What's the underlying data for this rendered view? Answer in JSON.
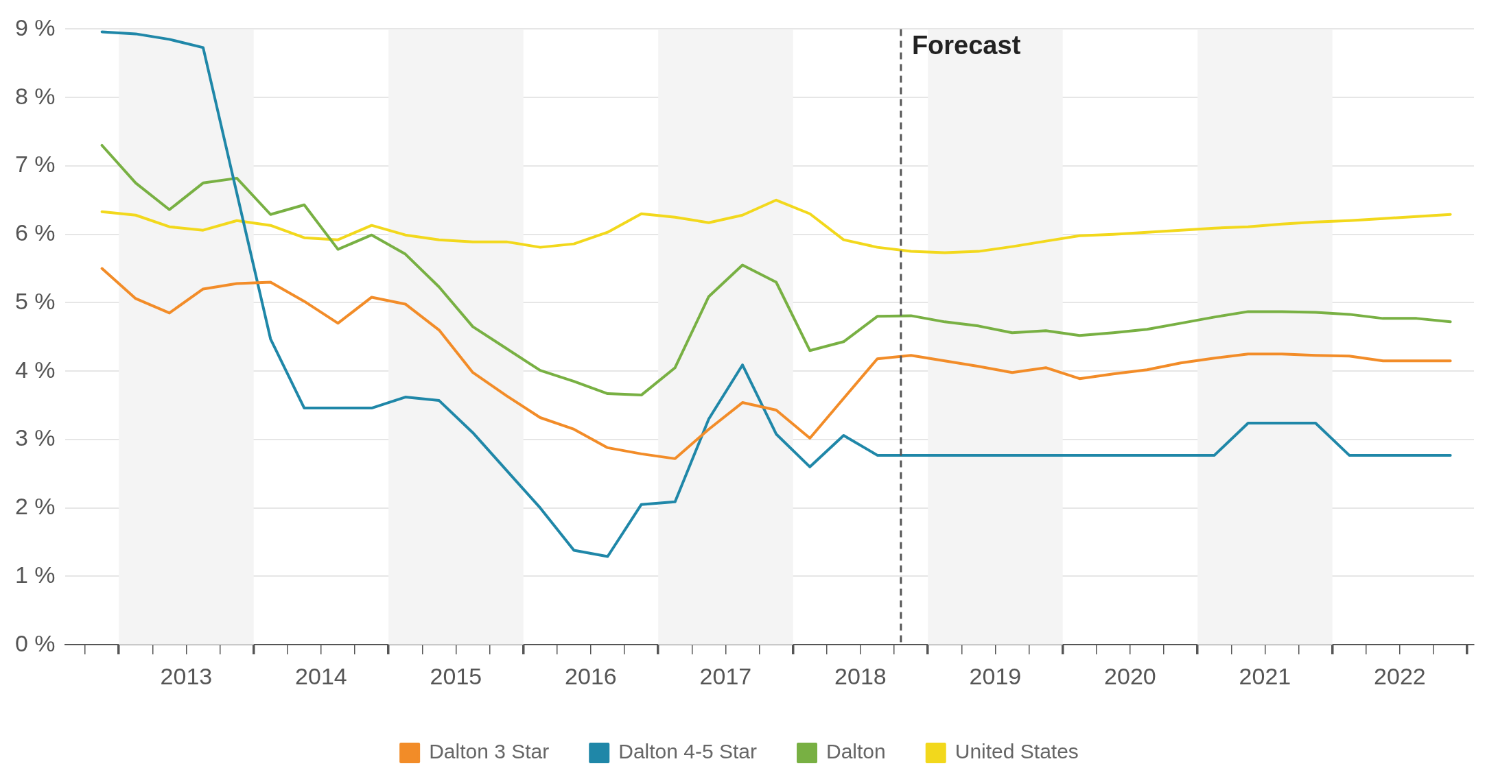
{
  "chart_data": {
    "type": "line",
    "x": [
      2012.875,
      2013.125,
      2013.375,
      2013.625,
      2013.875,
      2014.125,
      2014.375,
      2014.625,
      2014.875,
      2015.125,
      2015.375,
      2015.625,
      2015.875,
      2016.125,
      2016.375,
      2016.625,
      2016.875,
      2017.125,
      2017.375,
      2017.625,
      2017.875,
      2018.125,
      2018.375,
      2018.625,
      2018.875,
      2019.125,
      2019.375,
      2019.625,
      2019.875,
      2020.125,
      2020.375,
      2020.625,
      2020.875,
      2021.125,
      2021.375,
      2021.625,
      2021.875,
      2022.125,
      2022.375,
      2022.625,
      2022.875
    ],
    "series": [
      {
        "name": "Dalton 3 Star",
        "color": "#f28c28",
        "values": [
          5.5,
          5.06,
          4.85,
          5.2,
          5.28,
          5.3,
          5.02,
          4.7,
          5.08,
          4.98,
          4.6,
          3.98,
          3.64,
          3.32,
          3.15,
          2.88,
          2.79,
          2.72,
          3.15,
          3.54,
          3.43,
          3.02,
          3.6,
          4.18,
          4.23,
          4.15,
          4.07,
          3.98,
          4.05,
          3.89,
          3.96,
          4.02,
          4.12,
          4.19,
          4.25,
          4.25,
          4.23,
          4.22,
          4.15,
          4.15,
          4.15
        ]
      },
      {
        "name": "Dalton 4-5 Star",
        "color": "#1f87a8",
        "values": [
          8.96,
          8.93,
          8.85,
          8.73,
          6.6,
          4.47,
          3.46,
          3.46,
          3.46,
          3.62,
          3.57,
          3.1,
          2.55,
          2.0,
          1.38,
          1.29,
          2.05,
          2.09,
          3.3,
          4.09,
          3.08,
          2.6,
          3.06,
          2.77,
          2.77,
          2.77,
          2.77,
          2.77,
          2.77,
          2.77,
          2.77,
          2.77,
          2.77,
          2.77,
          3.24,
          3.24,
          3.24,
          2.77,
          2.77,
          2.77,
          2.77
        ]
      },
      {
        "name": "Dalton",
        "color": "#78b043",
        "values": [
          7.3,
          6.75,
          6.36,
          6.75,
          6.82,
          6.29,
          6.43,
          5.78,
          5.99,
          5.71,
          5.23,
          4.65,
          4.33,
          4.01,
          3.85,
          3.67,
          3.65,
          4.05,
          5.09,
          5.55,
          5.3,
          4.3,
          4.43,
          4.8,
          4.81,
          4.72,
          4.66,
          4.56,
          4.59,
          4.52,
          4.56,
          4.61,
          4.7,
          4.79,
          4.87,
          4.87,
          4.86,
          4.83,
          4.77,
          4.77,
          4.72
        ]
      },
      {
        "name": "United States",
        "color": "#f2d81c",
        "values": [
          6.33,
          6.28,
          6.11,
          6.06,
          6.2,
          6.13,
          5.95,
          5.92,
          6.13,
          5.99,
          5.92,
          5.89,
          5.89,
          5.81,
          5.86,
          6.03,
          6.3,
          6.25,
          6.17,
          6.28,
          6.5,
          6.3,
          5.92,
          5.81,
          5.75,
          5.73,
          5.75,
          5.82,
          5.9,
          5.98,
          6.0,
          6.03,
          6.06,
          6.09,
          6.11,
          6.15,
          6.18,
          6.2,
          6.23,
          6.26,
          6.29
        ]
      }
    ],
    "xlim": [
      2012.6,
      2023.05
    ],
    "xticks": [
      {
        "value": 2012.75,
        "label": null
      },
      {
        "value": 2013,
        "label": null
      },
      {
        "value": 2013.25,
        "label": null
      },
      {
        "value": 2013.5,
        "label": "2013"
      },
      {
        "value": 2013.75,
        "label": null
      },
      {
        "value": 2014,
        "label": null
      },
      {
        "value": 2014.25,
        "label": null
      },
      {
        "value": 2014.5,
        "label": "2014"
      },
      {
        "value": 2014.75,
        "label": null
      },
      {
        "value": 2015,
        "label": null
      },
      {
        "value": 2015.25,
        "label": null
      },
      {
        "value": 2015.5,
        "label": "2015"
      },
      {
        "value": 2015.75,
        "label": null
      },
      {
        "value": 2016,
        "label": null
      },
      {
        "value": 2016.25,
        "label": null
      },
      {
        "value": 2016.5,
        "label": "2016"
      },
      {
        "value": 2016.75,
        "label": null
      },
      {
        "value": 2017,
        "label": null
      },
      {
        "value": 2017.25,
        "label": null
      },
      {
        "value": 2017.5,
        "label": "2017"
      },
      {
        "value": 2017.75,
        "label": null
      },
      {
        "value": 2018,
        "label": null
      },
      {
        "value": 2018.25,
        "label": null
      },
      {
        "value": 2018.5,
        "label": "2018"
      },
      {
        "value": 2018.75,
        "label": null
      },
      {
        "value": 2019,
        "label": null
      },
      {
        "value": 2019.25,
        "label": null
      },
      {
        "value": 2019.5,
        "label": "2019"
      },
      {
        "value": 2019.75,
        "label": null
      },
      {
        "value": 2020,
        "label": null
      },
      {
        "value": 2020.25,
        "label": null
      },
      {
        "value": 2020.5,
        "label": "2020"
      },
      {
        "value": 2020.75,
        "label": null
      },
      {
        "value": 2021,
        "label": null
      },
      {
        "value": 2021.25,
        "label": null
      },
      {
        "value": 2021.5,
        "label": "2021"
      },
      {
        "value": 2021.75,
        "label": null
      },
      {
        "value": 2022,
        "label": null
      },
      {
        "value": 2022.25,
        "label": null
      },
      {
        "value": 2022.5,
        "label": "2022"
      },
      {
        "value": 2022.75,
        "label": null
      },
      {
        "value": 2023,
        "label": null
      }
    ],
    "ylim": [
      0,
      9
    ],
    "yticks": [
      {
        "value": 0,
        "label": "0 %"
      },
      {
        "value": 1,
        "label": "1 %"
      },
      {
        "value": 2,
        "label": "2 %"
      },
      {
        "value": 3,
        "label": "3 %"
      },
      {
        "value": 4,
        "label": "4 %"
      },
      {
        "value": 5,
        "label": "5 %"
      },
      {
        "value": 6,
        "label": "6 %"
      },
      {
        "value": 7,
        "label": "7 %"
      },
      {
        "value": 8,
        "label": "8 %"
      },
      {
        "value": 9,
        "label": "9 %"
      }
    ],
    "ref_lines": [
      {
        "axis": "x",
        "value": 2018.8,
        "label": "Forecast",
        "color": "#555555",
        "line_style": "dashed"
      }
    ],
    "bands": [
      {
        "axis": "x",
        "from": 2013,
        "to": 2014,
        "color": "#f4f4f4"
      },
      {
        "axis": "x",
        "from": 2015,
        "to": 2016,
        "color": "#f4f4f4"
      },
      {
        "axis": "x",
        "from": 2017,
        "to": 2018,
        "color": "#f4f4f4"
      },
      {
        "axis": "x",
        "from": 2019,
        "to": 2020,
        "color": "#f4f4f4"
      },
      {
        "axis": "x",
        "from": 2021,
        "to": 2022,
        "color": "#f4f4f4"
      }
    ],
    "grid": "y",
    "legend": "bottom",
    "marker": "none",
    "line_style": "solid"
  }
}
